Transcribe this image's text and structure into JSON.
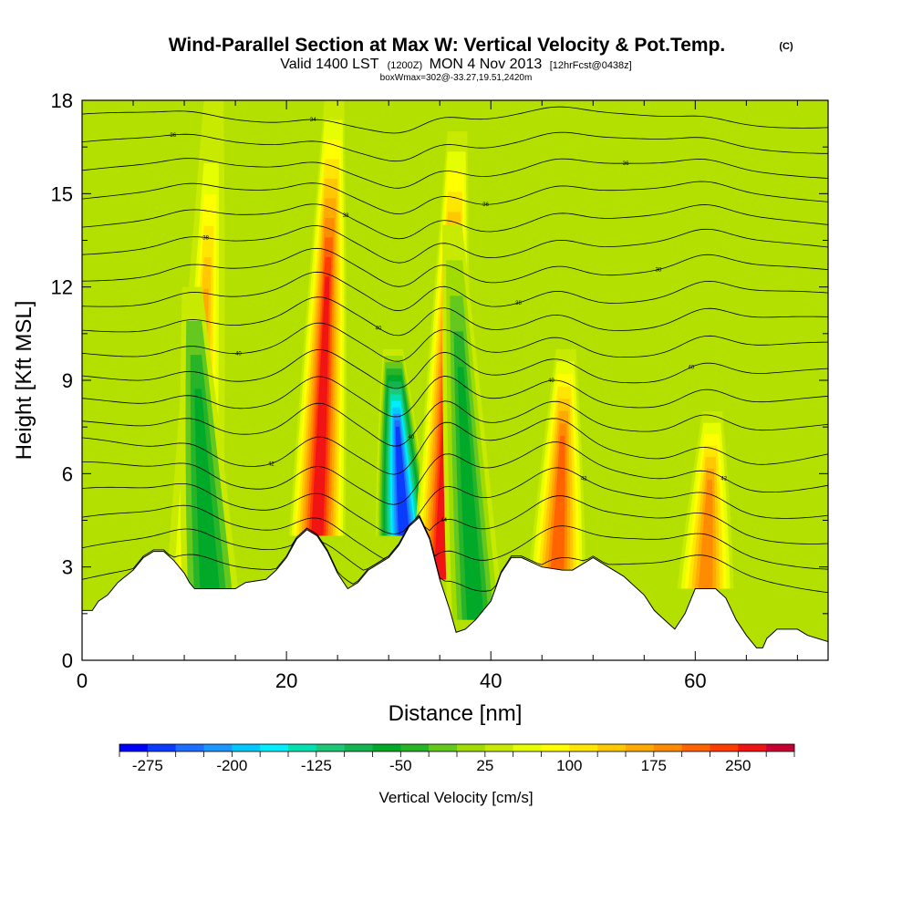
{
  "chart_data": {
    "type": "contour-section",
    "title": "Wind-Parallel Section at Max W: Vertical Velocity & Pot.Temp.",
    "title_mark": "(C)",
    "subtitle": {
      "valid": "Valid 1400 LST",
      "utc": "(1200Z)",
      "date": "MON 4 Nov 2013",
      "forecast": "[12hrFcst@0438z]"
    },
    "subtitle2": "boxWmax=302@-33.27,19.51,2420m",
    "xlabel": "Distance [nm]",
    "ylabel": "Height [Kft MSL]",
    "xlim": [
      0,
      73
    ],
    "ylim": [
      0,
      18
    ],
    "xticks": [
      0,
      20,
      40,
      60
    ],
    "yticks": [
      0,
      3,
      6,
      9,
      12,
      15,
      18
    ],
    "colorbar": {
      "label": "Vertical Velocity [cm/s]",
      "min": -300,
      "max": 300,
      "step": 25,
      "tick_values": [
        -275,
        -200,
        -125,
        -50,
        25,
        100,
        175,
        250
      ],
      "tick_labels": [
        "-275",
        "-200",
        "-125",
        "-50",
        "25",
        "100",
        "175",
        "250"
      ],
      "colors": [
        "#0000ff",
        "#0a3cff",
        "#1e6eff",
        "#1e96ff",
        "#00c8ff",
        "#00eeff",
        "#00e0b0",
        "#1ec878",
        "#14b450",
        "#00aa28",
        "#28b428",
        "#64c81e",
        "#a0dc00",
        "#c8ea00",
        "#e6ff00",
        "#ffff00",
        "#ffe600",
        "#ffc800",
        "#ffaa00",
        "#ff8c00",
        "#ff6400",
        "#ff3c00",
        "#f01414",
        "#c80032"
      ]
    },
    "terrain": [
      [
        0,
        1.6
      ],
      [
        1,
        1.6
      ],
      [
        1.6,
        1.9
      ],
      [
        2.5,
        2.1
      ],
      [
        3.5,
        2.5
      ],
      [
        5,
        2.9
      ],
      [
        6,
        3.3
      ],
      [
        7,
        3.5
      ],
      [
        8,
        3.5
      ],
      [
        9,
        3.2
      ],
      [
        10,
        2.8
      ],
      [
        10.5,
        2.5
      ],
      [
        11,
        2.3
      ],
      [
        13,
        2.3
      ],
      [
        15,
        2.3
      ],
      [
        16,
        2.5
      ],
      [
        18,
        2.6
      ],
      [
        19,
        2.9
      ],
      [
        20,
        3.3
      ],
      [
        21,
        3.9
      ],
      [
        22,
        4.2
      ],
      [
        23,
        4.0
      ],
      [
        24,
        3.5
      ],
      [
        25,
        2.8
      ],
      [
        26,
        2.3
      ],
      [
        27,
        2.5
      ],
      [
        28,
        2.9
      ],
      [
        30,
        3.3
      ],
      [
        31,
        3.7
      ],
      [
        32,
        4.3
      ],
      [
        33,
        4.6
      ],
      [
        34,
        3.9
      ],
      [
        35,
        2.6
      ],
      [
        36,
        1.6
      ],
      [
        36.6,
        0.9
      ],
      [
        37.5,
        1.0
      ],
      [
        38.5,
        1.3
      ],
      [
        40,
        1.9
      ],
      [
        41,
        2.8
      ],
      [
        42,
        3.3
      ],
      [
        43,
        3.3
      ],
      [
        45,
        3.0
      ],
      [
        47,
        2.9
      ],
      [
        48,
        2.9
      ],
      [
        50,
        3.3
      ],
      [
        51,
        3.1
      ],
      [
        53,
        2.7
      ],
      [
        55,
        2.1
      ],
      [
        56,
        1.6
      ],
      [
        57,
        1.3
      ],
      [
        58,
        1.0
      ],
      [
        59,
        1.5
      ],
      [
        60,
        2.3
      ],
      [
        62,
        2.3
      ],
      [
        63,
        2.0
      ],
      [
        64,
        1.3
      ],
      [
        65,
        0.8
      ],
      [
        66,
        0.4
      ],
      [
        66.6,
        0.4
      ],
      [
        67,
        0.7
      ],
      [
        68,
        1.0
      ],
      [
        70,
        1.0
      ],
      [
        71,
        0.8
      ],
      [
        73,
        0.6
      ]
    ],
    "w_plumes": [
      {
        "x": 11,
        "w": 165,
        "z_top": 18,
        "note": "updraft"
      },
      {
        "x": 12.5,
        "w": -60,
        "z_top": 12,
        "note": "downdraft"
      },
      {
        "x": 23,
        "w": 250,
        "z_top": 18,
        "note": "updraft"
      },
      {
        "x": 31.5,
        "w": -275,
        "z_top": 10,
        "note": "strong downdraft"
      },
      {
        "x": 35,
        "w": 260,
        "z_top": 17,
        "note": "strong updraft"
      },
      {
        "x": 38.5,
        "w": -75,
        "z_top": 14,
        "note": "downdraft"
      },
      {
        "x": 46.5,
        "w": 200,
        "z_top": 10,
        "note": "updraft"
      },
      {
        "x": 61,
        "w": 175,
        "z_top": 8,
        "note": "updraft"
      }
    ],
    "theta_contour_labels": [
      "44",
      "44",
      "44",
      "42",
      "42",
      "42",
      "40",
      "40",
      "40",
      "40",
      "40",
      "38",
      "38",
      "38",
      "38",
      "36",
      "36",
      "36",
      "34"
    ]
  }
}
